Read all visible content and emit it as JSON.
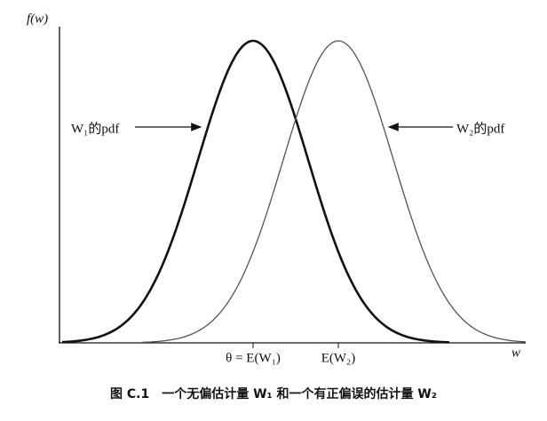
{
  "axes": {
    "y_label": "f(w)",
    "x_label": "w"
  },
  "curves": [
    {
      "label": "W₁的pdf"
    },
    {
      "label": "W₂的pdf"
    }
  ],
  "markers": [
    {
      "label": "θ = E(W₁)"
    },
    {
      "label": "E(W₂)"
    }
  ],
  "caption": "图 C.1　一个无偏估计量 W₁ 和一个有正偏误的估计量 W₂"
}
